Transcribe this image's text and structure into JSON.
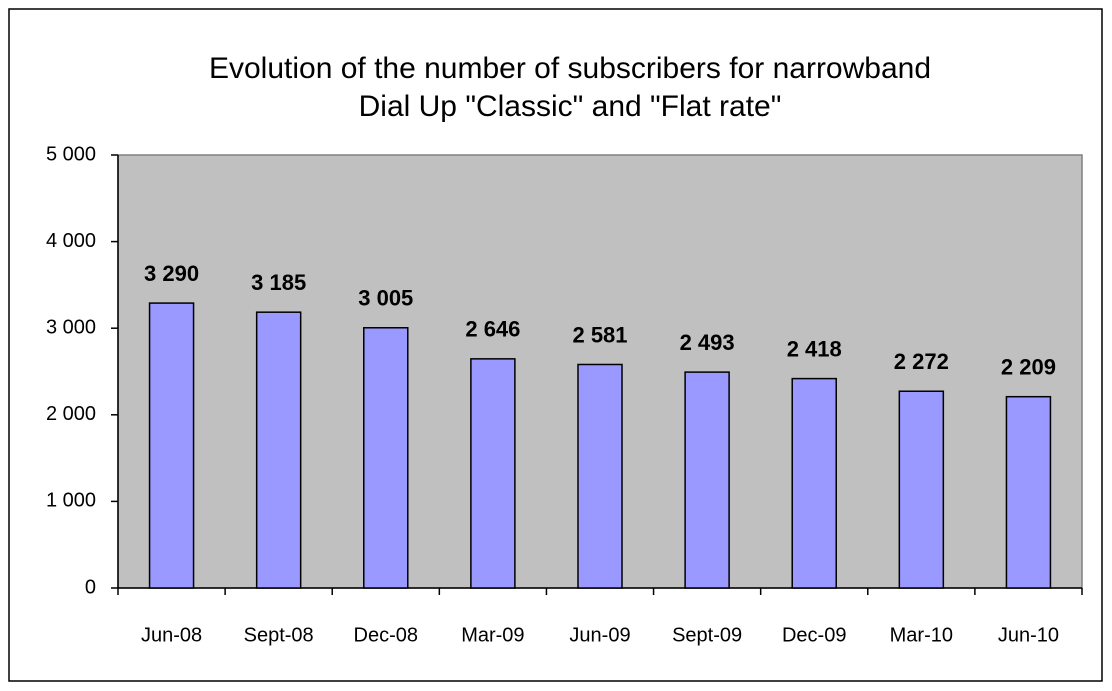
{
  "chart_data": {
    "type": "bar",
    "title": [
      "Evolution of the number of subscribers for narrowband",
      "Dial Up \"Classic\" and \"Flat rate\""
    ],
    "categories": [
      "Jun-08",
      "Sept-08",
      "Dec-08",
      "Mar-09",
      "Jun-09",
      "Sept-09",
      "Dec-09",
      "Mar-10",
      "Jun-10"
    ],
    "values": [
      3290,
      3185,
      3005,
      2646,
      2581,
      2493,
      2418,
      2272,
      2209
    ],
    "value_labels": [
      "3 290",
      "3 185",
      "3 005",
      "2 646",
      "2 581",
      "2 493",
      "2 418",
      "2 272",
      "2 209"
    ],
    "color": "#9999ff",
    "ylim": [
      0,
      5000
    ],
    "yticks": [
      0,
      {
        "value": 1000,
        "label": "1 000"
      },
      {
        "value": 2000,
        "label": "2 000"
      },
      {
        "value": 3000,
        "label": "3 000"
      },
      {
        "value": 4000,
        "label": "4 000"
      },
      {
        "value": 5000,
        "label": "5 000"
      }
    ],
    "grid": false
  }
}
